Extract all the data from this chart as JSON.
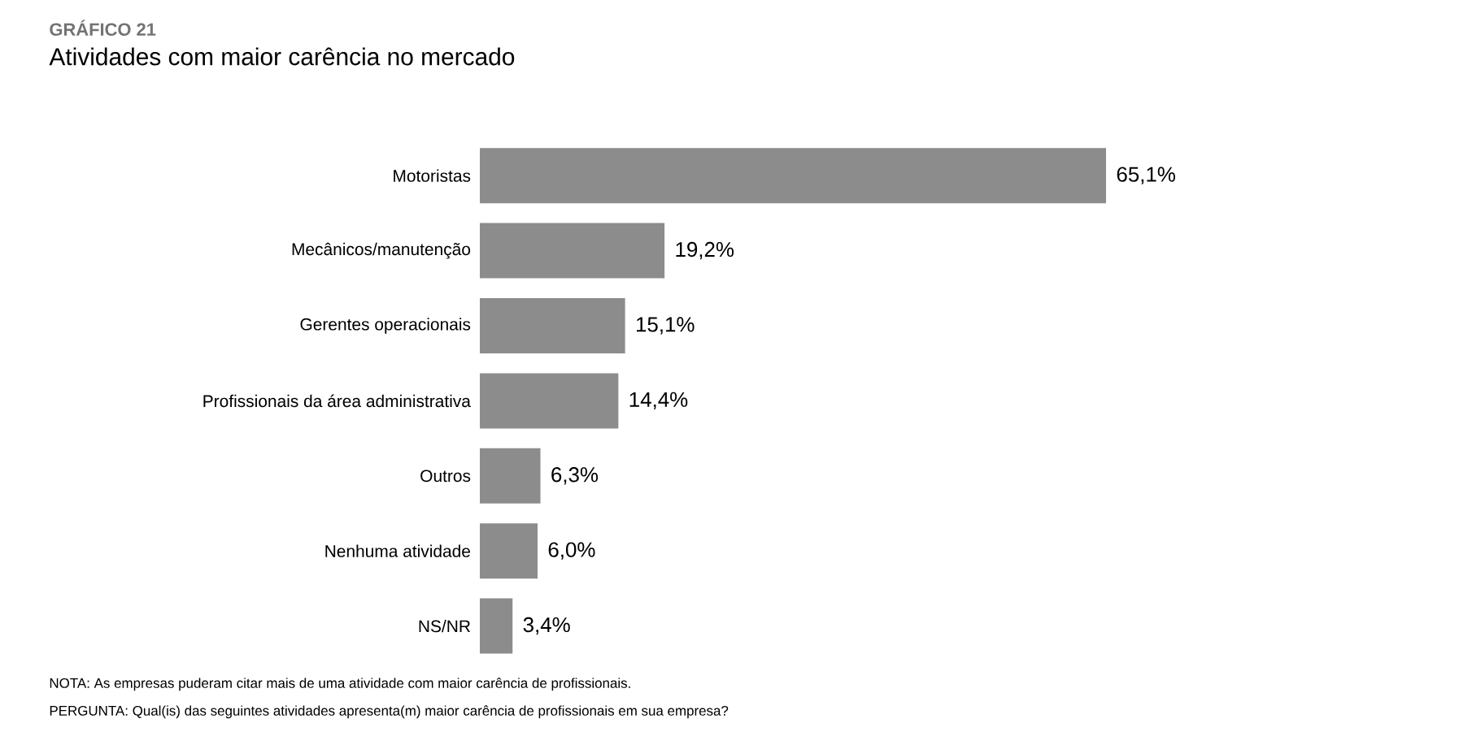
{
  "chart_data": {
    "type": "bar",
    "orientation": "horizontal",
    "title": "GRÁFICO 21",
    "subtitle": "Atividades com maior carência no mercado",
    "categories": [
      "Motoristas",
      "Mecânicos/manutenção",
      "Gerentes operacionais",
      "Profissionais da área administrativa",
      "Outros",
      "Nenhuma atividade",
      "NS/NR"
    ],
    "values": [
      65.1,
      19.2,
      15.1,
      14.4,
      6.3,
      6.0,
      3.4
    ],
    "value_labels": [
      "65,1%",
      "19,2%",
      "15,1%",
      "14,4%",
      "6,3%",
      "6,0%",
      "3,4%"
    ],
    "color": "#8c8c8c",
    "annotations": [
      "NOTA: As empresas puderam citar mais de uma atividade com maior carência de profissionais.",
      "PERGUNTA: Qual(is) das seguintes atividades apresenta(m) maior carência de profissionais em sua empresa?"
    ]
  }
}
